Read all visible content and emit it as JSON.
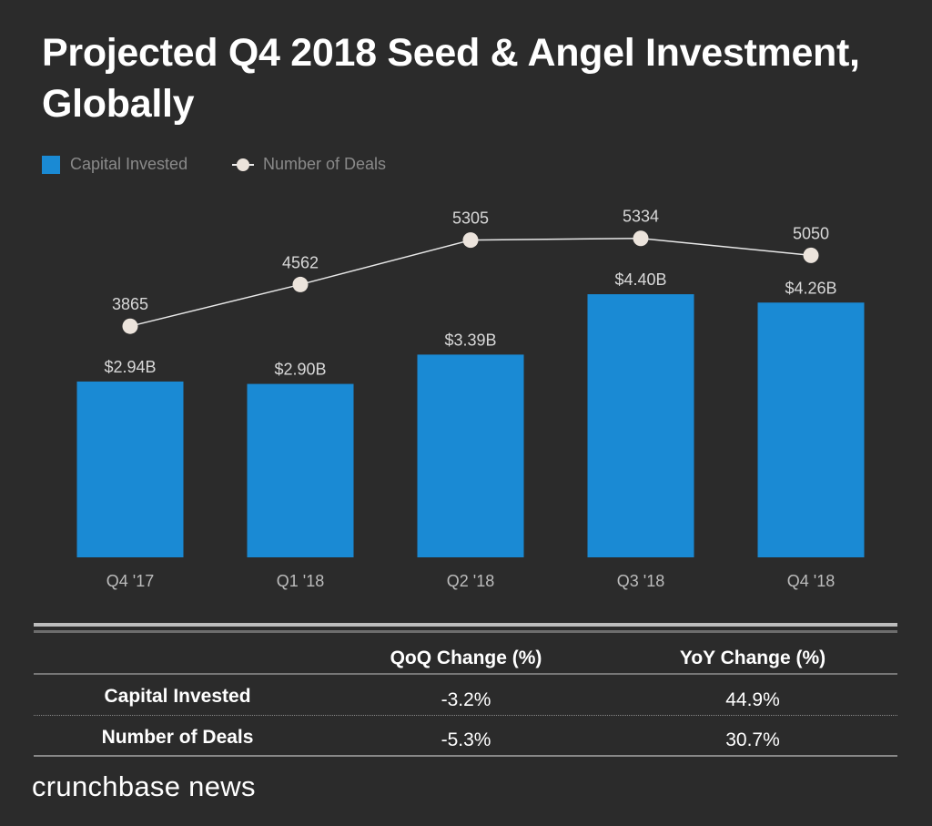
{
  "title": "Projected Q4 2018 Seed & Angel Investment, Globally",
  "chart_data": {
    "type": "bar",
    "title": "Projected Q4 2018 Seed & Angel Investment, Globally",
    "categories": [
      "Q4 '17",
      "Q1 '18",
      "Q2 '18",
      "Q3 '18",
      "Q4 '18"
    ],
    "series": [
      {
        "name": "Capital Invested",
        "type": "bar",
        "values": [
          2.94,
          2.9,
          3.39,
          4.4,
          4.26
        ],
        "labels": [
          "$2.94B",
          "$2.90B",
          "$3.39B",
          "$4.40B",
          "$4.26B"
        ],
        "color": "#1a8ad4",
        "ylim": [
          0,
          6
        ]
      },
      {
        "name": "Number of Deals",
        "type": "line",
        "values": [
          3865,
          4562,
          5305,
          5334,
          5050
        ],
        "labels": [
          "3865",
          "4562",
          "5305",
          "5334",
          "5050"
        ],
        "color": "#ece4dc",
        "ylim": [
          0,
          6000
        ]
      }
    ],
    "legend": "top-left",
    "grid": false
  },
  "table": {
    "headers": [
      "",
      "QoQ Change (%)",
      "YoY Change (%)"
    ],
    "rows": [
      [
        "Capital Invested",
        "-3.2%",
        "44.9%"
      ],
      [
        "Number of Deals",
        "-5.3%",
        "30.7%"
      ]
    ]
  },
  "logo": "crunchbase news",
  "colors": {
    "background": "#2b2b2b",
    "bar": "#1a8ad4",
    "line": "#ece4dc"
  }
}
